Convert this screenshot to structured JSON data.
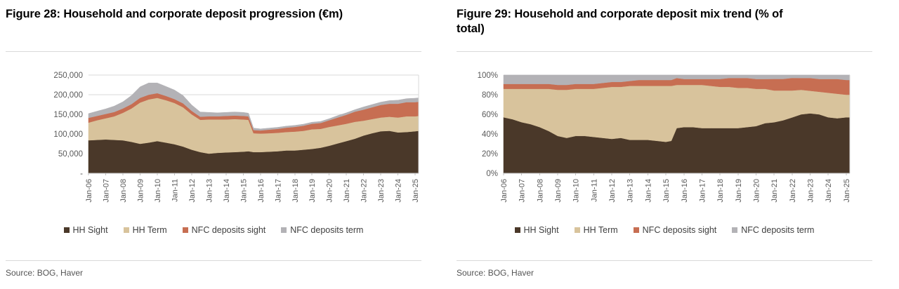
{
  "style": {
    "background": "#ffffff",
    "grid": "#d9d9d9",
    "axis": "#bfbfbf",
    "tick_text": "#595959",
    "title_text": "#000000",
    "legend_text": "#3f3f3f",
    "divider": "#d9d9d9",
    "source_text": "#545454",
    "series_colors": {
      "hh_sight": "#4a3829",
      "hh_term": "#d8c39c",
      "nfc_deposits_sight": "#c76e52",
      "nfc_deposits_term": "#b3b2b6"
    }
  },
  "chart_data": [
    {
      "type": "area",
      "stacked": true,
      "normalize_to_100": false,
      "title": "Figure 28: Household and corporate deposit progression (€m)",
      "source_note": "Source: BOG, Haver",
      "xlabel": "",
      "ylabel": "",
      "grid": "horizontal",
      "legend_position": "bottom",
      "ylim": [
        0,
        250000
      ],
      "y_ticks": [
        {
          "value": 250000,
          "label": "250,000"
        },
        {
          "value": 200000,
          "label": "200,000"
        },
        {
          "value": 150000,
          "label": "150,000"
        },
        {
          "value": 100000,
          "label": "100,000"
        },
        {
          "value": 50000,
          "label": "50,000"
        },
        {
          "value": 0,
          "label": "-"
        }
      ],
      "x": [
        2006,
        2006.5,
        2007,
        2007.5,
        2008,
        2008.5,
        2009,
        2009.5,
        2010,
        2010.5,
        2011,
        2011.5,
        2012,
        2012.5,
        2013,
        2013.5,
        2014,
        2014.5,
        2015,
        2015.3,
        2015.6,
        2016,
        2016.5,
        2017,
        2017.5,
        2018,
        2018.5,
        2019,
        2019.5,
        2020,
        2020.5,
        2021,
        2021.5,
        2022,
        2022.5,
        2023,
        2023.5,
        2024,
        2024.5,
        2025,
        2025.2
      ],
      "x_tick_values": [
        2006,
        2007,
        2008,
        2009,
        2010,
        2011,
        2012,
        2013,
        2014,
        2015,
        2016,
        2017,
        2018,
        2019,
        2020,
        2021,
        2022,
        2023,
        2024,
        2025
      ],
      "x_tick_labels": [
        "Jan-06",
        "Jan-07",
        "Jan-08",
        "Jan-09",
        "Jan-10",
        "Jan-11",
        "Jan-12",
        "Jan-13",
        "Jan-14",
        "Jan-15",
        "Jan-16",
        "Jan-17",
        "Jan-18",
        "Jan-19",
        "Jan-20",
        "Jan-21",
        "Jan-22",
        "Jan-23",
        "Jan-24",
        "Jan-25"
      ],
      "series": [
        {
          "name": "HH Sight",
          "color": "#4a3829",
          "values": [
            84000,
            85000,
            86000,
            85000,
            84000,
            80000,
            75000,
            78000,
            82000,
            78000,
            74000,
            68000,
            60000,
            54000,
            50000,
            52000,
            53000,
            54000,
            55000,
            56000,
            54000,
            54000,
            55000,
            56000,
            58000,
            58000,
            60000,
            62000,
            65000,
            70000,
            76000,
            82000,
            88000,
            96000,
            102000,
            107000,
            108000,
            104000,
            105000,
            107000,
            108000
          ]
        },
        {
          "name": "HH Term",
          "color": "#d8c39c",
          "values": [
            45000,
            50000,
            54000,
            60000,
            70000,
            85000,
            105000,
            110000,
            110000,
            108000,
            105000,
            100000,
            90000,
            82000,
            87000,
            85000,
            84000,
            84000,
            82000,
            80000,
            48000,
            47000,
            47000,
            47000,
            47000,
            48000,
            48000,
            50000,
            48000,
            48000,
            46000,
            44000,
            43000,
            38000,
            36000,
            35000,
            36000,
            38000,
            40000,
            38000,
            38000
          ]
        },
        {
          "name": "NFC deposits sight",
          "color": "#c76e52",
          "values": [
            12000,
            11000,
            11000,
            11000,
            11000,
            11000,
            12000,
            12000,
            12000,
            11000,
            10000,
            10000,
            9000,
            8000,
            8000,
            8000,
            9000,
            9000,
            9000,
            9000,
            8000,
            8000,
            9000,
            10000,
            11000,
            12000,
            13000,
            14000,
            15000,
            17000,
            20000,
            23000,
            26000,
            28000,
            30000,
            32000,
            33000,
            35000,
            36000,
            36000,
            36000
          ]
        },
        {
          "name": "NFC deposits term",
          "color": "#b3b2b6",
          "values": [
            11000,
            12000,
            13000,
            15000,
            17000,
            22000,
            28000,
            30000,
            26000,
            24000,
            23000,
            20000,
            15000,
            12000,
            10000,
            9000,
            9000,
            9000,
            9000,
            8000,
            5000,
            4000,
            4000,
            4000,
            4000,
            4000,
            4000,
            4000,
            4000,
            4000,
            5000,
            5000,
            5000,
            7000,
            7000,
            7000,
            8000,
            9000,
            9000,
            10000,
            10000
          ]
        }
      ]
    },
    {
      "type": "area",
      "stacked": true,
      "normalize_to_100": true,
      "title": "Figure 29: Household and corporate deposit mix trend (% of total)",
      "source_note": "Source: BOG, Haver",
      "xlabel": "",
      "ylabel": "",
      "grid": "horizontal",
      "legend_position": "bottom",
      "ylim": [
        0,
        100
      ],
      "y_ticks": [
        {
          "value": 100,
          "label": "100%"
        },
        {
          "value": 80,
          "label": "80%"
        },
        {
          "value": 60,
          "label": "60%"
        },
        {
          "value": 40,
          "label": "40%"
        },
        {
          "value": 20,
          "label": "20%"
        },
        {
          "value": 0,
          "label": "0%"
        }
      ],
      "x": [
        2006,
        2006.5,
        2007,
        2007.5,
        2008,
        2008.5,
        2009,
        2009.5,
        2010,
        2010.5,
        2011,
        2011.5,
        2012,
        2012.5,
        2013,
        2013.5,
        2014,
        2014.5,
        2015,
        2015.3,
        2015.6,
        2016,
        2016.5,
        2017,
        2017.5,
        2018,
        2018.5,
        2019,
        2019.5,
        2020,
        2020.5,
        2021,
        2021.5,
        2022,
        2022.5,
        2023,
        2023.5,
        2024,
        2024.5,
        2025,
        2025.2
      ],
      "x_tick_values": [
        2006,
        2007,
        2008,
        2009,
        2010,
        2011,
        2012,
        2013,
        2014,
        2015,
        2016,
        2017,
        2018,
        2019,
        2020,
        2021,
        2022,
        2023,
        2024,
        2025
      ],
      "x_tick_labels": [
        "Jan-06",
        "Jan-07",
        "Jan-08",
        "Jan-09",
        "Jan-10",
        "Jan-11",
        "Jan-12",
        "Jan-13",
        "Jan-14",
        "Jan-15",
        "Jan-16",
        "Jan-17",
        "Jan-18",
        "Jan-19",
        "Jan-20",
        "Jan-21",
        "Jan-22",
        "Jan-23",
        "Jan-24",
        "Jan-25"
      ],
      "series": [
        {
          "name": "HH Sight",
          "color": "#4a3829",
          "values": [
            57,
            55,
            52,
            50,
            47,
            43,
            38,
            36,
            38,
            38,
            37,
            36,
            35,
            36,
            34,
            34,
            34,
            33,
            32,
            33,
            46,
            47,
            47,
            46,
            46,
            46,
            46,
            46,
            47,
            48,
            51,
            53,
            55,
            58,
            60,
            61,
            60,
            57,
            56,
            57,
            57
          ]
        },
        {
          "name": "HH Term",
          "color": "#d8c39c",
          "values": [
            29,
            31,
            34,
            36,
            39,
            43,
            47,
            49,
            48,
            48,
            49,
            51,
            53,
            52,
            55,
            55,
            55,
            56,
            57,
            56,
            44,
            43,
            43,
            44,
            43,
            42,
            42,
            41,
            40,
            38,
            35,
            33,
            31,
            28,
            25,
            23,
            23,
            25,
            25,
            23,
            23
          ]
        },
        {
          "name": "NFC deposits sight",
          "color": "#c76e52",
          "values": [
            5,
            5,
            5,
            5,
            5,
            5,
            5,
            5,
            5,
            5,
            5,
            5,
            5,
            5,
            5,
            6,
            6,
            6,
            6,
            6,
            7,
            6,
            6,
            6,
            7,
            8,
            9,
            10,
            10,
            10,
            10,
            12,
            12,
            13,
            12,
            13,
            13,
            14,
            15,
            15,
            15
          ]
        },
        {
          "name": "NFC deposits term",
          "color": "#b3b2b6",
          "values": [
            9,
            9,
            9,
            9,
            9,
            9,
            10,
            10,
            9,
            9,
            9,
            8,
            7,
            7,
            6,
            5,
            5,
            5,
            5,
            5,
            3,
            4,
            4,
            4,
            4,
            4,
            3,
            3,
            3,
            4,
            4,
            4,
            4,
            3,
            3,
            3,
            4,
            4,
            4,
            5,
            5
          ]
        }
      ]
    }
  ]
}
